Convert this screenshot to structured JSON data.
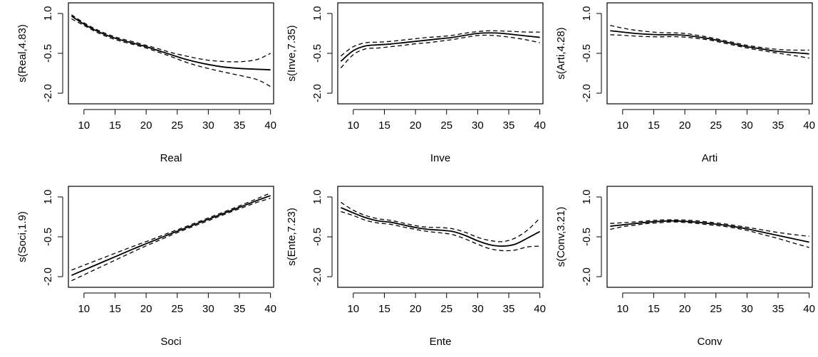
{
  "chart_data": [
    {
      "type": "line",
      "xlabel": "Real",
      "ylabel": "s(Real,4.83)",
      "xticks": [
        10,
        15,
        20,
        25,
        30,
        35,
        40
      ],
      "yticks": [
        1.0,
        -0.5,
        -2.0
      ],
      "ytick_labels": [
        "1.0",
        "-0.5",
        "-2.0"
      ],
      "xlim": [
        7.5,
        40.5
      ],
      "ylim": [
        -2.4,
        1.4
      ],
      "x": [
        8,
        10,
        12,
        14,
        16,
        18,
        20,
        22,
        24,
        26,
        28,
        30,
        32,
        34,
        36,
        38,
        40
      ],
      "series": [
        {
          "role": "fit",
          "line_style": "solid",
          "values": [
            0.9,
            0.6,
            0.35,
            0.15,
            0.0,
            -0.12,
            -0.25,
            -0.4,
            -0.55,
            -0.7,
            -0.82,
            -0.92,
            -1.0,
            -1.05,
            -1.08,
            -1.1,
            -1.12
          ]
        },
        {
          "role": "upper",
          "line_style": "dashed",
          "values": [
            0.95,
            0.65,
            0.4,
            0.2,
            0.05,
            -0.07,
            -0.2,
            -0.33,
            -0.47,
            -0.58,
            -0.68,
            -0.76,
            -0.8,
            -0.82,
            -0.8,
            -0.72,
            -0.5
          ]
        },
        {
          "role": "lower",
          "line_style": "dashed",
          "values": [
            0.8,
            0.55,
            0.3,
            0.1,
            -0.05,
            -0.17,
            -0.3,
            -0.46,
            -0.62,
            -0.8,
            -0.95,
            -1.07,
            -1.18,
            -1.28,
            -1.38,
            -1.5,
            -1.75
          ]
        }
      ]
    },
    {
      "type": "line",
      "xlabel": "Inve",
      "ylabel": "s(Inve,7.35)",
      "xticks": [
        10,
        15,
        20,
        25,
        30,
        35,
        40
      ],
      "yticks": [
        1.0,
        -0.5,
        -2.0
      ],
      "ytick_labels": [
        "1.0",
        "-0.5",
        "-2.0"
      ],
      "xlim": [
        7.5,
        40.5
      ],
      "ylim": [
        -2.4,
        1.4
      ],
      "x": [
        8,
        10,
        12,
        14,
        16,
        18,
        20,
        22,
        24,
        26,
        28,
        30,
        32,
        34,
        36,
        38,
        40
      ],
      "series": [
        {
          "role": "fit",
          "line_style": "solid",
          "values": [
            -0.8,
            -0.4,
            -0.22,
            -0.18,
            -0.15,
            -0.1,
            -0.05,
            0.0,
            0.05,
            0.1,
            0.18,
            0.25,
            0.27,
            0.25,
            0.2,
            0.15,
            0.1
          ]
        },
        {
          "role": "upper",
          "line_style": "dashed",
          "values": [
            -0.6,
            -0.25,
            -0.1,
            -0.08,
            -0.05,
            0.0,
            0.05,
            0.1,
            0.13,
            0.18,
            0.26,
            0.32,
            0.35,
            0.34,
            0.32,
            0.3,
            0.3
          ]
        },
        {
          "role": "lower",
          "line_style": "dashed",
          "values": [
            -1.05,
            -0.55,
            -0.33,
            -0.3,
            -0.25,
            -0.2,
            -0.14,
            -0.1,
            -0.04,
            0.02,
            0.1,
            0.17,
            0.18,
            0.14,
            0.08,
            0.0,
            -0.1
          ]
        }
      ]
    },
    {
      "type": "line",
      "xlabel": "Arti",
      "ylabel": "s(Arti,4.28)",
      "xticks": [
        10,
        15,
        20,
        25,
        30,
        35,
        40
      ],
      "yticks": [
        1.0,
        -0.5,
        -2.0
      ],
      "ytick_labels": [
        "1.0",
        "-0.5",
        "-2.0"
      ],
      "xlim": [
        7.5,
        40.5
      ],
      "ylim": [
        -2.4,
        1.4
      ],
      "x": [
        8,
        10,
        12,
        14,
        16,
        18,
        20,
        22,
        24,
        26,
        28,
        30,
        32,
        34,
        36,
        38,
        40
      ],
      "series": [
        {
          "role": "fit",
          "line_style": "solid",
          "values": [
            0.35,
            0.3,
            0.25,
            0.22,
            0.2,
            0.2,
            0.18,
            0.12,
            0.05,
            -0.05,
            -0.15,
            -0.25,
            -0.32,
            -0.4,
            -0.45,
            -0.48,
            -0.52
          ]
        },
        {
          "role": "upper",
          "line_style": "dashed",
          "values": [
            0.55,
            0.45,
            0.37,
            0.32,
            0.28,
            0.27,
            0.25,
            0.18,
            0.1,
            0.0,
            -0.1,
            -0.2,
            -0.27,
            -0.33,
            -0.37,
            -0.38,
            -0.38
          ]
        },
        {
          "role": "lower",
          "line_style": "dashed",
          "values": [
            0.2,
            0.18,
            0.15,
            0.13,
            0.12,
            0.13,
            0.11,
            0.06,
            0.0,
            -0.1,
            -0.2,
            -0.3,
            -0.38,
            -0.46,
            -0.53,
            -0.6,
            -0.68
          ]
        }
      ]
    },
    {
      "type": "line",
      "xlabel": "Soci",
      "ylabel": "s(Soci,1.9)",
      "xticks": [
        10,
        15,
        20,
        25,
        30,
        35,
        40
      ],
      "yticks": [
        1.0,
        -0.5,
        -2.0
      ],
      "ytick_labels": [
        "1.0",
        "-0.5",
        "-2.0"
      ],
      "xlim": [
        7.5,
        40.5
      ],
      "ylim": [
        -2.4,
        1.4
      ],
      "x": [
        8,
        10,
        12,
        14,
        16,
        18,
        20,
        22,
        24,
        26,
        28,
        30,
        32,
        34,
        36,
        38,
        40
      ],
      "series": [
        {
          "role": "fit",
          "line_style": "solid",
          "values": [
            -1.95,
            -1.75,
            -1.55,
            -1.35,
            -1.15,
            -0.95,
            -0.76,
            -0.57,
            -0.38,
            -0.2,
            -0.02,
            0.16,
            0.34,
            0.52,
            0.7,
            0.88,
            1.05
          ]
        },
        {
          "role": "upper",
          "line_style": "dashed",
          "values": [
            -1.75,
            -1.57,
            -1.39,
            -1.21,
            -1.03,
            -0.85,
            -0.68,
            -0.5,
            -0.32,
            -0.15,
            0.03,
            0.21,
            0.39,
            0.57,
            0.76,
            0.95,
            1.15
          ]
        },
        {
          "role": "lower",
          "line_style": "dashed",
          "values": [
            -2.15,
            -1.93,
            -1.71,
            -1.49,
            -1.27,
            -1.05,
            -0.84,
            -0.64,
            -0.44,
            -0.25,
            -0.07,
            0.11,
            0.29,
            0.47,
            0.64,
            0.81,
            0.95
          ]
        }
      ]
    },
    {
      "type": "line",
      "xlabel": "Ente",
      "ylabel": "s(Ente,7.23)",
      "xticks": [
        10,
        15,
        20,
        25,
        30,
        35,
        40
      ],
      "yticks": [
        1.0,
        -0.5,
        -2.0
      ],
      "ytick_labels": [
        "1.0",
        "-0.5",
        "-2.0"
      ],
      "xlim": [
        7.5,
        40.5
      ],
      "ylim": [
        -2.4,
        1.4
      ],
      "x": [
        8,
        10,
        12,
        14,
        16,
        18,
        20,
        22,
        24,
        26,
        28,
        30,
        32,
        34,
        36,
        38,
        40
      ],
      "series": [
        {
          "role": "fit",
          "line_style": "solid",
          "values": [
            0.6,
            0.4,
            0.22,
            0.1,
            0.05,
            -0.05,
            -0.15,
            -0.22,
            -0.25,
            -0.3,
            -0.45,
            -0.65,
            -0.8,
            -0.85,
            -0.78,
            -0.55,
            -0.3
          ]
        },
        {
          "role": "upper",
          "line_style": "dashed",
          "values": [
            0.8,
            0.5,
            0.3,
            0.18,
            0.12,
            0.02,
            -0.08,
            -0.14,
            -0.15,
            -0.2,
            -0.33,
            -0.52,
            -0.64,
            -0.68,
            -0.55,
            -0.25,
            0.2
          ]
        },
        {
          "role": "lower",
          "line_style": "dashed",
          "values": [
            0.45,
            0.3,
            0.12,
            0.02,
            -0.03,
            -0.13,
            -0.22,
            -0.3,
            -0.35,
            -0.42,
            -0.58,
            -0.78,
            -0.95,
            -1.02,
            -1.0,
            -0.88,
            -0.85
          ]
        }
      ]
    },
    {
      "type": "line",
      "xlabel": "Conv",
      "ylabel": "s(Conv,3.21)",
      "xticks": [
        10,
        15,
        20,
        25,
        30,
        35,
        40
      ],
      "yticks": [
        1.0,
        -0.5,
        -2.0
      ],
      "ytick_labels": [
        "1.0",
        "-0.5",
        "-2.0"
      ],
      "xlim": [
        7.5,
        40.5
      ],
      "ylim": [
        -2.4,
        1.4
      ],
      "x": [
        8,
        10,
        12,
        14,
        16,
        18,
        20,
        22,
        24,
        26,
        28,
        30,
        32,
        34,
        36,
        38,
        40
      ],
      "series": [
        {
          "role": "fit",
          "line_style": "solid",
          "values": [
            -0.1,
            -0.05,
            0.0,
            0.05,
            0.08,
            0.1,
            0.08,
            0.05,
            0.0,
            -0.05,
            -0.12,
            -0.2,
            -0.3,
            -0.4,
            -0.5,
            -0.6,
            -0.7
          ]
        },
        {
          "role": "upper",
          "line_style": "dashed",
          "values": [
            0.0,
            0.03,
            0.06,
            0.1,
            0.13,
            0.14,
            0.13,
            0.1,
            0.05,
            0.0,
            -0.07,
            -0.14,
            -0.22,
            -0.3,
            -0.37,
            -0.43,
            -0.48
          ]
        },
        {
          "role": "lower",
          "line_style": "dashed",
          "values": [
            -0.22,
            -0.12,
            -0.06,
            0.0,
            0.03,
            0.06,
            0.04,
            0.0,
            -0.05,
            -0.1,
            -0.17,
            -0.26,
            -0.38,
            -0.5,
            -0.63,
            -0.77,
            -0.9
          ]
        }
      ]
    }
  ]
}
